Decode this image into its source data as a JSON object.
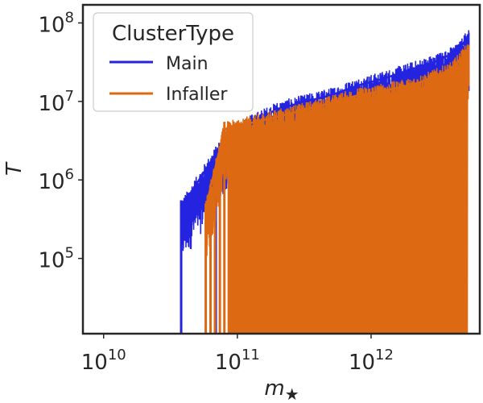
{
  "chart_data": {
    "type": "line",
    "xlabel_base": "m",
    "xlabel_sub": "★",
    "ylabel": "T",
    "x_scale": "log",
    "y_scale": "log",
    "xlim": [
      7000000000.0,
      6500000000000.0
    ],
    "ylim": [
      11000,
      170000000
    ],
    "x_ticks": [
      {
        "value": 10000000000.0,
        "base": "10",
        "exp": "10"
      },
      {
        "value": 100000000000.0,
        "base": "10",
        "exp": "11"
      },
      {
        "value": 1000000000000.0,
        "base": "10",
        "exp": "12"
      }
    ],
    "y_ticks": [
      {
        "value": 100000.0,
        "base": "10",
        "exp": "5"
      },
      {
        "value": 1000000.0,
        "base": "10",
        "exp": "6"
      },
      {
        "value": 10000000.0,
        "base": "10",
        "exp": "7"
      },
      {
        "value": 100000000.0,
        "base": "10",
        "exp": "8"
      }
    ],
    "grid": false,
    "legend_position": "top-left",
    "legend_title": "ClusterType",
    "series": [
      {
        "name": "Main",
        "color": "#2323e0",
        "envelope": [
          [
            38000000000.0,
            550000
          ],
          [
            80000000000.0,
            4000000
          ],
          [
            120000000000.0,
            6500000
          ],
          [
            200000000000.0,
            10000000
          ],
          [
            300000000000.0,
            12000000
          ],
          [
            500000000000.0,
            15000000
          ],
          [
            800000000000.0,
            20000000
          ],
          [
            1200000000000.0,
            24000000
          ],
          [
            2000000000000.0,
            32000000
          ],
          [
            3000000000000.0,
            40000000
          ],
          [
            4500000000000.0,
            55000000
          ],
          [
            5400000000000.0,
            90000000
          ]
        ],
        "spikes": [
          [
            38000000000.0,
            550000
          ],
          [
            69000000000.0,
            1500000
          ],
          [
            950000000000.0,
            2000000
          ],
          [
            1050000000000.0,
            3500000
          ],
          [
            1300000000000.0,
            2500000
          ],
          [
            1500000000000.0,
            6000000
          ],
          [
            1700000000000.0,
            4000000
          ],
          [
            2000000000000.0,
            5500000
          ],
          [
            2300000000000.0,
            8000000
          ],
          [
            2600000000000.0,
            12000000
          ],
          [
            2900000000000.0,
            9000000
          ],
          [
            3300000000000.0,
            15000000
          ]
        ]
      },
      {
        "name": "Infaller",
        "color": "#dd6a12",
        "envelope": [
          [
            58000000000.0,
            550000
          ],
          [
            80000000000.0,
            5500000
          ],
          [
            120000000000.0,
            6500000
          ],
          [
            200000000000.0,
            8000000
          ],
          [
            300000000000.0,
            9500000
          ],
          [
            500000000000.0,
            12000000
          ],
          [
            800000000000.0,
            15000000
          ],
          [
            1200000000000.0,
            17000000
          ],
          [
            2000000000000.0,
            20000000
          ],
          [
            3000000000000.0,
            26000000
          ],
          [
            4000000000000.0,
            32000000
          ],
          [
            5400000000000.0,
            60000000
          ]
        ],
        "spikes": [
          [
            58000000000.0,
            500000
          ],
          [
            63000000000.0,
            600000
          ],
          [
            68000000000.0,
            1200000
          ],
          [
            74000000000.0,
            1900000
          ],
          [
            80000000000.0,
            5500000
          ],
          [
            110000000000.0,
            3200000
          ],
          [
            240000000000.0,
            4500000
          ],
          [
            780000000000.0,
            3000000
          ],
          [
            1250000000000.0,
            9000000
          ],
          [
            2200000000000.0,
            6000000
          ]
        ]
      }
    ]
  }
}
